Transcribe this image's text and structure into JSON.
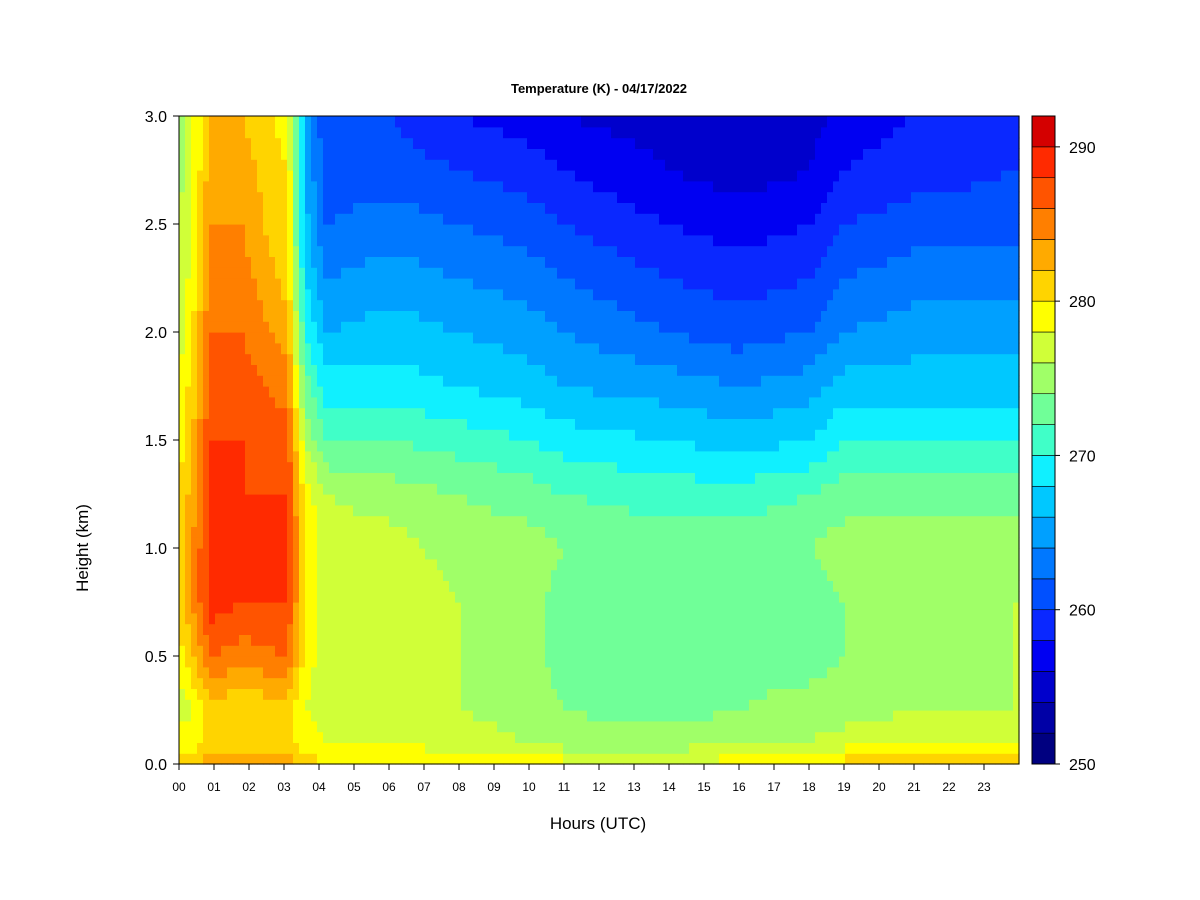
{
  "chart_data": {
    "type": "heatmap",
    "title": "Temperature (K) - 04/17/2022",
    "xlabel": "Hours (UTC)",
    "ylabel": "Height (km)",
    "xlim": [
      0,
      24
    ],
    "ylim": [
      0,
      3.0
    ],
    "x_ticks": [
      "00",
      "01",
      "02",
      "03",
      "04",
      "05",
      "06",
      "07",
      "08",
      "09",
      "10",
      "11",
      "12",
      "13",
      "14",
      "15",
      "16",
      "17",
      "18",
      "19",
      "20",
      "21",
      "22",
      "23"
    ],
    "y_ticks": [
      "0.0",
      "0.5",
      "1.0",
      "1.5",
      "2.0",
      "2.5",
      "3.0"
    ],
    "colorbar": {
      "min": 250,
      "max": 292,
      "ticks": [
        "250",
        "260",
        "270",
        "280",
        "290"
      ],
      "levels": [
        250,
        252,
        254,
        256,
        258,
        260,
        262,
        264,
        266,
        268,
        270,
        272,
        274,
        276,
        278,
        280,
        282,
        284,
        286,
        288,
        290,
        292
      ],
      "colors": [
        "#000080",
        "#0000a6",
        "#0000cc",
        "#0000f2",
        "#0a28ff",
        "#0050ff",
        "#0078ff",
        "#00a0ff",
        "#00c8ff",
        "#10f0ff",
        "#40ffc8",
        "#70ff98",
        "#a0ff68",
        "#d0ff38",
        "#ffff00",
        "#ffd400",
        "#ffaa00",
        "#ff7f00",
        "#ff5400",
        "#ff2a00",
        "#d40000",
        "#800000"
      ]
    },
    "heights_km": [
      0.0,
      0.1,
      0.25,
      0.5,
      0.75,
      1.0,
      1.25,
      1.5,
      1.75,
      2.0,
      2.25,
      2.5,
      2.75,
      3.0
    ],
    "profiles": [
      {
        "hour": 0.0,
        "temps_K": [
          281,
          279,
          277,
          279,
          281,
          281,
          280,
          279,
          278,
          277,
          276,
          276,
          275,
          275
        ]
      },
      {
        "hour": 0.4,
        "temps_K": [
          282,
          279,
          278,
          282,
          284,
          284,
          283,
          282,
          281,
          280,
          279,
          279,
          278,
          278
        ]
      },
      {
        "hour": 0.9,
        "temps_K": [
          283,
          281,
          281,
          286,
          289,
          289,
          289,
          288,
          287,
          286,
          285,
          284,
          283,
          282
        ]
      },
      {
        "hour": 1.8,
        "temps_K": [
          283,
          280,
          280,
          285,
          288,
          289,
          288,
          288,
          287,
          286,
          285,
          284,
          283,
          282
        ]
      },
      {
        "hour": 3.1,
        "temps_K": [
          283,
          281,
          281,
          286,
          288,
          289,
          288,
          287,
          285,
          283,
          281,
          280,
          280,
          279
        ]
      },
      {
        "hour": 3.6,
        "temps_K": [
          281,
          279,
          278,
          279,
          280,
          280,
          279,
          276,
          273,
          270,
          268,
          267,
          266,
          266
        ]
      },
      {
        "hour": 4.2,
        "temps_K": [
          280,
          278,
          277,
          277,
          277,
          277,
          276,
          272,
          269,
          266,
          264,
          262,
          261,
          260
        ]
      },
      {
        "hour": 6.0,
        "temps_K": [
          280,
          278,
          277,
          277,
          278,
          277,
          275,
          272,
          269,
          267,
          265,
          263,
          261,
          260
        ]
      },
      {
        "hour": 8.0,
        "temps_K": [
          279,
          277,
          276,
          276,
          276,
          275,
          274,
          271,
          268,
          266,
          264,
          262,
          260,
          258
        ]
      },
      {
        "hour": 10.0,
        "temps_K": [
          279,
          276,
          275,
          275,
          275,
          275,
          273,
          270,
          267,
          265,
          263,
          261,
          259,
          257
        ]
      },
      {
        "hour": 11.0,
        "temps_K": [
          279,
          275,
          274,
          273,
          273,
          274,
          272,
          269,
          266,
          264,
          262,
          260,
          258,
          256
        ]
      },
      {
        "hour": 14.0,
        "temps_K": [
          278,
          275,
          273,
          273,
          273,
          273,
          271,
          268,
          265,
          262,
          260,
          258,
          256,
          255
        ]
      },
      {
        "hour": 16.0,
        "temps_K": [
          279,
          276,
          274,
          273,
          273,
          273,
          271,
          267,
          264,
          261,
          259,
          257,
          255,
          254
        ]
      },
      {
        "hour": 18.0,
        "temps_K": [
          280,
          276,
          275,
          273,
          273,
          274,
          272,
          268,
          265,
          262,
          260,
          258,
          256,
          255
        ]
      },
      {
        "hour": 19.0,
        "temps_K": [
          281,
          277,
          275,
          274,
          274,
          275,
          273,
          270,
          267,
          264,
          262,
          260,
          258,
          257
        ]
      },
      {
        "hour": 21.0,
        "temps_K": [
          282,
          278,
          276,
          275,
          275,
          275,
          273,
          270,
          267,
          265,
          263,
          261,
          259,
          258
        ]
      },
      {
        "hour": 23.8,
        "temps_K": [
          283,
          278,
          276,
          276,
          276,
          275,
          273,
          270,
          267,
          265,
          263,
          261,
          260,
          259
        ]
      }
    ]
  }
}
